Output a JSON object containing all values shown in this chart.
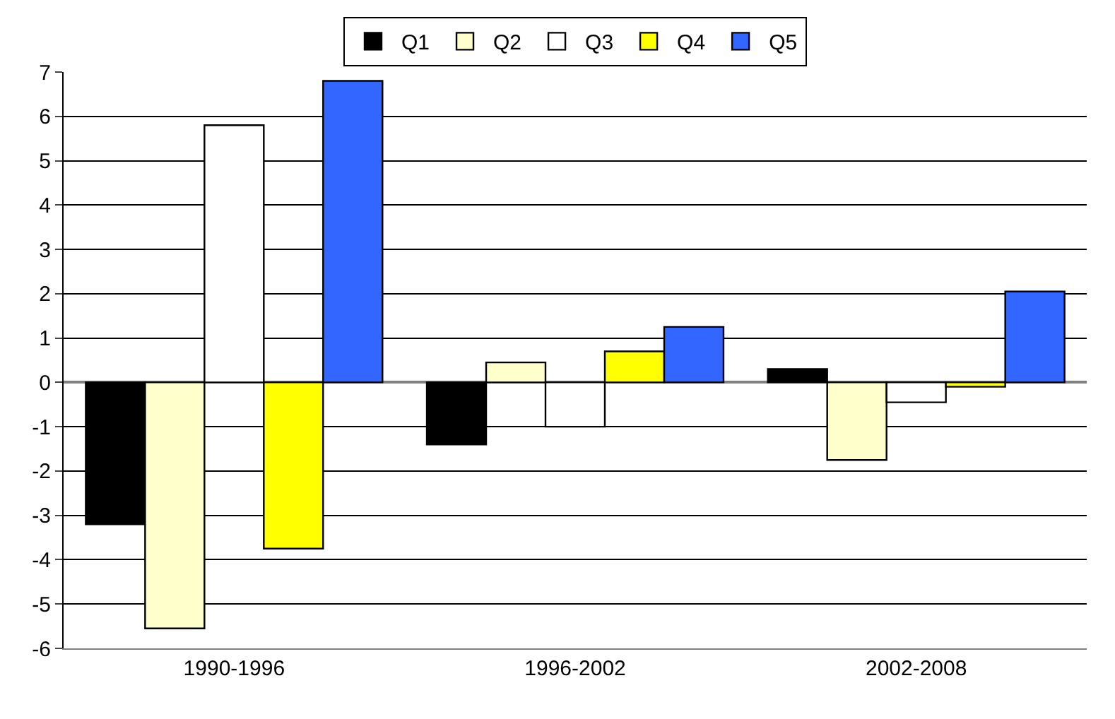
{
  "chart_data": {
    "type": "bar",
    "categories": [
      "1990-1996",
      "1996-2002",
      "2002-2008"
    ],
    "series": [
      {
        "name": "Q1",
        "color": "#000000",
        "values": [
          -3.2,
          -1.4,
          0.3
        ]
      },
      {
        "name": "Q2",
        "color": "#ffffcc",
        "values": [
          -5.55,
          0.45,
          -1.75
        ]
      },
      {
        "name": "Q3",
        "color": "#ffffff",
        "values": [
          5.8,
          -1.0,
          -0.45
        ]
      },
      {
        "name": "Q4",
        "color": "#ffff00",
        "values": [
          -3.75,
          0.7,
          -0.1
        ]
      },
      {
        "name": "Q5",
        "color": "#3366ff",
        "values": [
          6.8,
          1.25,
          2.05
        ]
      }
    ],
    "ylim": [
      -6,
      7
    ],
    "yticks": [
      -6,
      -5,
      -4,
      -3,
      -2,
      -1,
      0,
      1,
      2,
      3,
      4,
      5,
      6,
      7
    ],
    "grid": "y",
    "legend": "top"
  }
}
